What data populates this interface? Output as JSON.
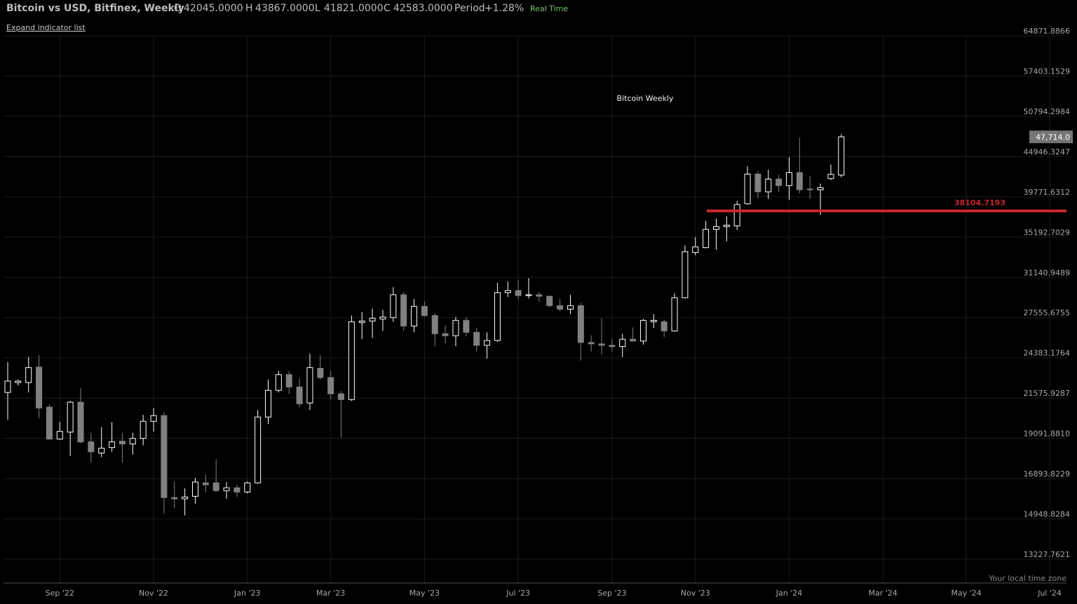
{
  "header": {
    "title": "Bitcoin vs USD, Bitfinex, Weekly",
    "ohlc": [
      {
        "key": "O",
        "value": "42045.0000"
      },
      {
        "key": "H",
        "value": "43867.0000"
      },
      {
        "key": "L",
        "value": "41821.0000"
      },
      {
        "key": "C",
        "value": "42583.0000"
      }
    ],
    "period": {
      "key": "Period",
      "value": "+1.28%"
    },
    "status": "Real Time"
  },
  "expand_link": "Expand indicator list",
  "chart_data": {
    "type": "candlestick",
    "title": "Bitcoin Weekly",
    "categories": [
      null,
      null,
      null,
      null,
      null,
      "Sep '22",
      null,
      null,
      null,
      null,
      null,
      null,
      null,
      null,
      "Nov '22",
      null,
      null,
      null,
      null,
      null,
      null,
      null,
      null,
      "Jan '23",
      null,
      null,
      null,
      null,
      null,
      null,
      null,
      "Mar '23",
      null,
      null,
      null,
      null,
      null,
      null,
      null,
      null,
      "May '23",
      null,
      null,
      null,
      null,
      null,
      null,
      null,
      null,
      "Jul '23",
      null,
      null,
      null,
      null,
      null,
      null,
      null,
      null,
      "Sep '23",
      null,
      null,
      null,
      null,
      null,
      null,
      null,
      "Nov '23",
      null,
      null,
      null,
      null,
      null,
      null,
      null,
      null,
      "Jan '24",
      null,
      null,
      null,
      null,
      null,
      null,
      null,
      null,
      "Mar '24",
      null,
      null,
      null,
      null,
      null,
      null,
      null,
      "May '24",
      null,
      null,
      null,
      null,
      null,
      null,
      null,
      "Jul '24"
    ],
    "open": [
      21950,
      22620,
      22620,
      23710,
      20990,
      19050,
      19460,
      21310,
      18890,
      18260,
      18570,
      18930,
      18770,
      19090,
      20110,
      20460,
      15950,
      15890,
      16010,
      16680,
      16680,
      16290,
      16430,
      16220,
      16680,
      20370,
      22090,
      23170,
      22320,
      21260,
      23620,
      22970,
      21860,
      21480,
      27150,
      27270,
      27440,
      27560,
      29530,
      26860,
      28510,
      27730,
      26240,
      26080,
      27320,
      26350,
      25330,
      25700,
      29720,
      29910,
      29460,
      29530,
      29400,
      28570,
      28270,
      28570,
      25550,
      25440,
      25330,
      25230,
      25800,
      25660,
      27210,
      27210,
      26460,
      29270,
      33580,
      34080,
      36030,
      36330,
      36410,
      38940,
      42610,
      40370,
      41970,
      41150,
      42800,
      40720,
      40630,
      42045,
      42480,
      null,
      null,
      null,
      null,
      null,
      null,
      null,
      null,
      null,
      null,
      null,
      null,
      null,
      null,
      null,
      null,
      null,
      null,
      null,
      null
    ],
    "high": [
      24070,
      22830,
      24440,
      24590,
      21170,
      20070,
      21390,
      22230,
      19420,
      19760,
      20060,
      19420,
      19420,
      20510,
      20940,
      20670,
      16750,
      16400,
      16930,
      17110,
      17920,
      16720,
      16580,
      16750,
      20810,
      22830,
      23420,
      23420,
      22920,
      24700,
      24590,
      23420,
      22040,
      27730,
      28030,
      28330,
      28210,
      30230,
      29780,
      29160,
      28950,
      27910,
      26910,
      27610,
      27610,
      26690,
      26350,
      30620,
      30740,
      30870,
      31070,
      29780,
      29460,
      29160,
      29530,
      28820,
      26120,
      27500,
      25800,
      26240,
      26750,
      27440,
      27850,
      27380,
      29660,
      34310,
      35200,
      36970,
      37230,
      37480,
      39270,
      43630,
      42980,
      43170,
      42520,
      44850,
      47580,
      42350,
      41410,
      43867,
      48120,
      null,
      null,
      null,
      null,
      null,
      null,
      null,
      null,
      null,
      null,
      null,
      null,
      null,
      null,
      null,
      null,
      null,
      null,
      null,
      null
    ],
    "low": [
      20200,
      22420,
      21950,
      20290,
      19020,
      19020,
      18100,
      18810,
      17730,
      18030,
      18330,
      17730,
      18180,
      18690,
      19500,
      15200,
      15440,
      15110,
      15650,
      16220,
      16220,
      15890,
      15980,
      16150,
      16650,
      19940,
      21950,
      21860,
      20990,
      20810,
      22830,
      21480,
      19130,
      21390,
      25800,
      25910,
      26460,
      27210,
      26460,
      26350,
      27610,
      25260,
      25490,
      25260,
      26020,
      24850,
      24330,
      25610,
      29340,
      29100,
      29210,
      28950,
      28450,
      28090,
      27850,
      24180,
      24850,
      24640,
      24850,
      24440,
      25610,
      25380,
      26690,
      25970,
      26410,
      29210,
      33300,
      34010,
      33870,
      34740,
      35950,
      38850,
      39600,
      39520,
      40370,
      39430,
      40200,
      39520,
      37630,
      41821,
      42200,
      null,
      null,
      null,
      null,
      null,
      null,
      null,
      null,
      null,
      null,
      null,
      null,
      null,
      null,
      null,
      null,
      null,
      null,
      null,
      null
    ],
    "close": [
      22720,
      22720,
      23670,
      20940,
      19050,
      19500,
      21310,
      18890,
      18330,
      18530,
      18890,
      18770,
      19090,
      20110,
      20460,
      15950,
      15890,
      15980,
      16720,
      16580,
      16290,
      16430,
      16220,
      16680,
      20370,
      22090,
      23170,
      22320,
      21210,
      23670,
      22970,
      21860,
      21480,
      27210,
      27270,
      27500,
      27610,
      29530,
      26860,
      28510,
      27730,
      26240,
      26080,
      27320,
      26350,
      25330,
      25700,
      29720,
      29910,
      29460,
      29530,
      29400,
      28570,
      28270,
      28570,
      25550,
      25440,
      25330,
      25230,
      25800,
      25660,
      27320,
      27320,
      26460,
      29270,
      33660,
      34160,
      36030,
      36330,
      36490,
      38850,
      42610,
      40370,
      41970,
      41150,
      42800,
      40630,
      40630,
      40890,
      42583,
      47714,
      null,
      null,
      null,
      null,
      null,
      null,
      null,
      null,
      null,
      null,
      null,
      null,
      null,
      null,
      null,
      null,
      null,
      null,
      null,
      null
    ],
    "up_color": "#ffffff",
    "down_color": "#808080",
    "log_scale": true,
    "grid": true,
    "ylim": [
      12305,
      72310
    ],
    "yticks": [
      64871.8866,
      57403.1529,
      50794.2984,
      44946.3247,
      39771.6312,
      35192.7029,
      31140.9489,
      27555.6755,
      24383.1764,
      21575.9287,
      {
        "value": 19091.881,
        "label": "19091.8810"
      },
      16893.8229,
      14948.8284,
      13227.7621
    ],
    "level": 38104.7193,
    "level_color": "#c62828",
    "last_price_label": "47,714.0",
    "timezone_note": "Your local time zone"
  }
}
